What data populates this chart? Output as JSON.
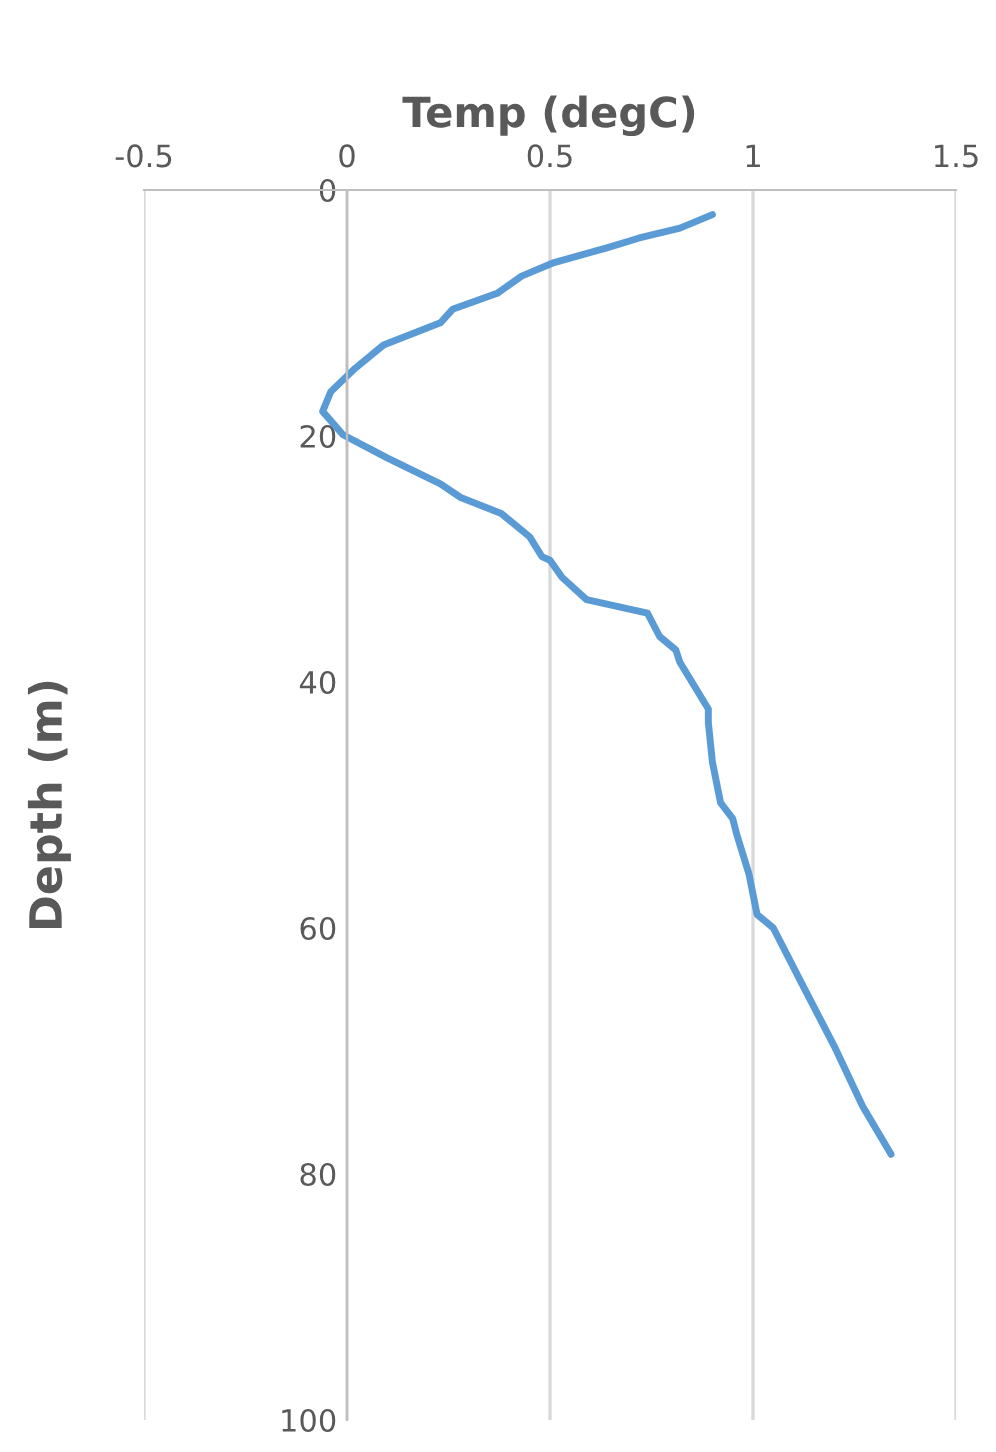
{
  "chart_data": {
    "type": "line",
    "xlabel": "Temp (degC)",
    "ylabel": "Depth (m)",
    "xlim": [
      -0.5,
      1.5
    ],
    "xticks": [
      -0.5,
      0,
      0.5,
      1,
      1.5
    ],
    "ylim": [
      100,
      0
    ],
    "yticks": [
      0,
      20,
      40,
      60,
      80,
      100
    ],
    "grid": "x",
    "legend": false,
    "marker": "none",
    "line_style": "solid",
    "series": [
      {
        "color": "#5b9bd5",
        "x": [
          0.9,
          0.82,
          0.72,
          0.64,
          0.51,
          0.43,
          0.37,
          0.26,
          0.23,
          0.09,
          0.02,
          -0.04,
          -0.06,
          -0.01,
          0.1,
          0.23,
          0.28,
          0.38,
          0.45,
          0.48,
          0.5,
          0.53,
          0.59,
          0.74,
          0.77,
          0.81,
          0.82,
          0.89,
          0.89,
          0.9,
          0.92,
          0.95,
          0.96,
          0.99,
          1.01,
          1.05,
          1.12,
          1.2,
          1.27,
          1.34
        ],
        "values": [
          2.0,
          3.1,
          3.9,
          4.7,
          5.9,
          7.0,
          8.4,
          9.7,
          10.8,
          12.6,
          14.5,
          16.4,
          18.0,
          19.9,
          21.8,
          23.9,
          25.0,
          26.3,
          28.2,
          29.8,
          30.1,
          31.5,
          33.3,
          34.4,
          36.3,
          37.4,
          38.4,
          42.2,
          43.3,
          46.5,
          49.8,
          51.1,
          52.4,
          55.6,
          58.9,
          60.0,
          64.5,
          69.6,
          74.5,
          78.4
        ]
      }
    ]
  }
}
